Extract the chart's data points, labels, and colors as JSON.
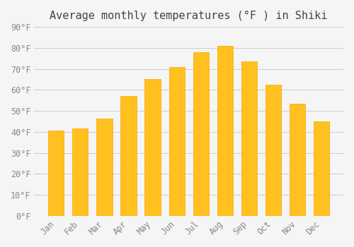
{
  "title": "Average monthly temperatures (°F ) in Shiki",
  "months": [
    "Jan",
    "Feb",
    "Mar",
    "Apr",
    "May",
    "Jun",
    "Jul",
    "Aug",
    "Sep",
    "Oct",
    "Nov",
    "Dec"
  ],
  "values": [
    40.5,
    41.5,
    46.5,
    57,
    65,
    71,
    78,
    81,
    73.5,
    62.5,
    53.5,
    45
  ],
  "bar_color_main": "#FFC020",
  "bar_color_edge": "#FFA500",
  "background_color": "#F5F5F5",
  "ylim": [
    0,
    90
  ],
  "ytick_step": 10,
  "title_fontsize": 11,
  "tick_fontsize": 8.5,
  "grid_color": "#CCCCCC"
}
